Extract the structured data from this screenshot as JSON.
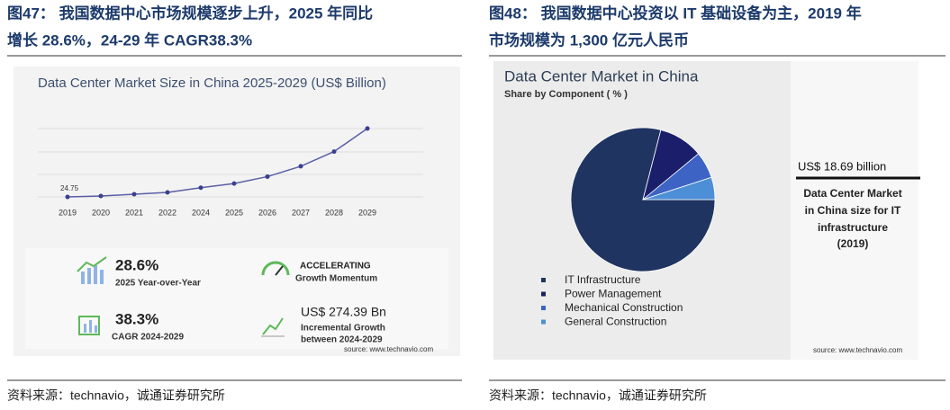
{
  "figures": [
    {
      "caption": [
        "图47：  我国数据中心市场规模逐步上升，2025 年同比",
        "增长 28.6%，24-29 年 CAGR38.3%"
      ],
      "source": "资料来源：technavio，诚通证券研究所"
    },
    {
      "caption": [
        "图48：  我国数据中心投资以 IT 基础设备为主，2019 年",
        "市场规模为 1,300 亿元人民币"
      ],
      "source": "资料来源：technavio，诚通证券研究所"
    }
  ],
  "chart_data": [
    {
      "type": "line",
      "title": "Data Center Market Size in China 2025-2029 (US$ Billion)",
      "categories": [
        "2019",
        "2020",
        "2021",
        "2022",
        "2024",
        "2025",
        "2026",
        "2027",
        "2028",
        "2029"
      ],
      "values": [
        24.75,
        29,
        37.6,
        46,
        67.6,
        87,
        119,
        167,
        235,
        342
      ],
      "value_labels": [
        "24.75",
        null,
        null,
        null,
        null,
        null,
        null,
        null,
        null,
        null
      ],
      "color": "#5b5ea6",
      "ylim": [
        0,
        350
      ],
      "stats": [
        {
          "value": "28.6%",
          "label": [
            "2025 Year-over-Year"
          ]
        },
        {
          "value": "ACCELERATING",
          "label": [
            "Growth Momentum"
          ]
        },
        {
          "value": "38.3%",
          "label": [
            "CAGR 2024-2029"
          ]
        },
        {
          "value": "US$ 274.39 Bn",
          "label": [
            "Incremental Growth",
            "between 2024-2029"
          ]
        }
      ],
      "source": "source: www.technavio.com"
    },
    {
      "type": "pie",
      "title": "Data Center Market in China",
      "subtitle": "Share by Component ( % )",
      "categories": [
        "IT Infrastructure",
        "Power Management",
        "Mechanical Construction",
        "General Construction"
      ],
      "values": [
        79,
        10,
        6,
        5
      ],
      "colors": [
        "#1f3461",
        "#1b1f6b",
        "#3d64c4",
        "#4d8fd6"
      ],
      "callout": {
        "value": "US$ 18.69 billion",
        "text": [
          "Data Center Market",
          "in China size for IT",
          "infrastructure",
          "(2019)"
        ]
      },
      "source": "source: www.technavio.com"
    }
  ]
}
